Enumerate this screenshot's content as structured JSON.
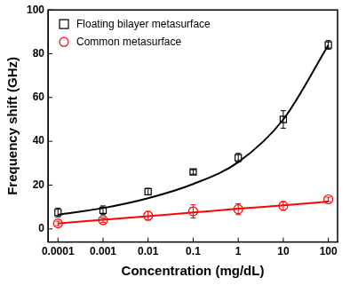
{
  "chart_data": {
    "type": "scatter",
    "x_label": "Concentration (mg/dL)",
    "y_label": "Frequency shift (GHz)",
    "log": "x",
    "grid": false,
    "legend": "upper left",
    "x": [
      0.0001,
      0.001,
      0.01,
      0.1,
      1,
      10,
      100
    ],
    "xlim": [
      6e-05,
      160
    ],
    "xticks": [
      0.0001,
      0.001,
      0.01,
      0.1,
      1,
      10,
      100
    ],
    "ylim": [
      -6,
      100
    ],
    "yticks": [
      0,
      20,
      40,
      60,
      80,
      100
    ],
    "series": [
      {
        "name": "Floating bilayer metasurface",
        "color": "#000000",
        "marker": "square",
        "values": [
          7.5,
          8.5,
          17,
          26,
          32.5,
          50,
          84
        ],
        "errors": [
          2,
          2,
          1.5,
          1,
          2,
          4,
          2
        ],
        "fit": [
          6.5,
          9.5,
          14,
          20.5,
          30.5,
          50,
          84
        ]
      },
      {
        "name": "Common metasurface",
        "color": "#ff0000",
        "marker": "circle",
        "values": [
          2.5,
          4,
          6,
          8,
          9,
          10.5,
          13.5
        ],
        "errors": [
          1,
          1,
          2,
          3,
          2.5,
          2,
          1
        ],
        "fit": [
          2.5,
          4.2,
          5.8,
          7.5,
          9.2,
          10.8,
          12.5
        ]
      }
    ]
  }
}
